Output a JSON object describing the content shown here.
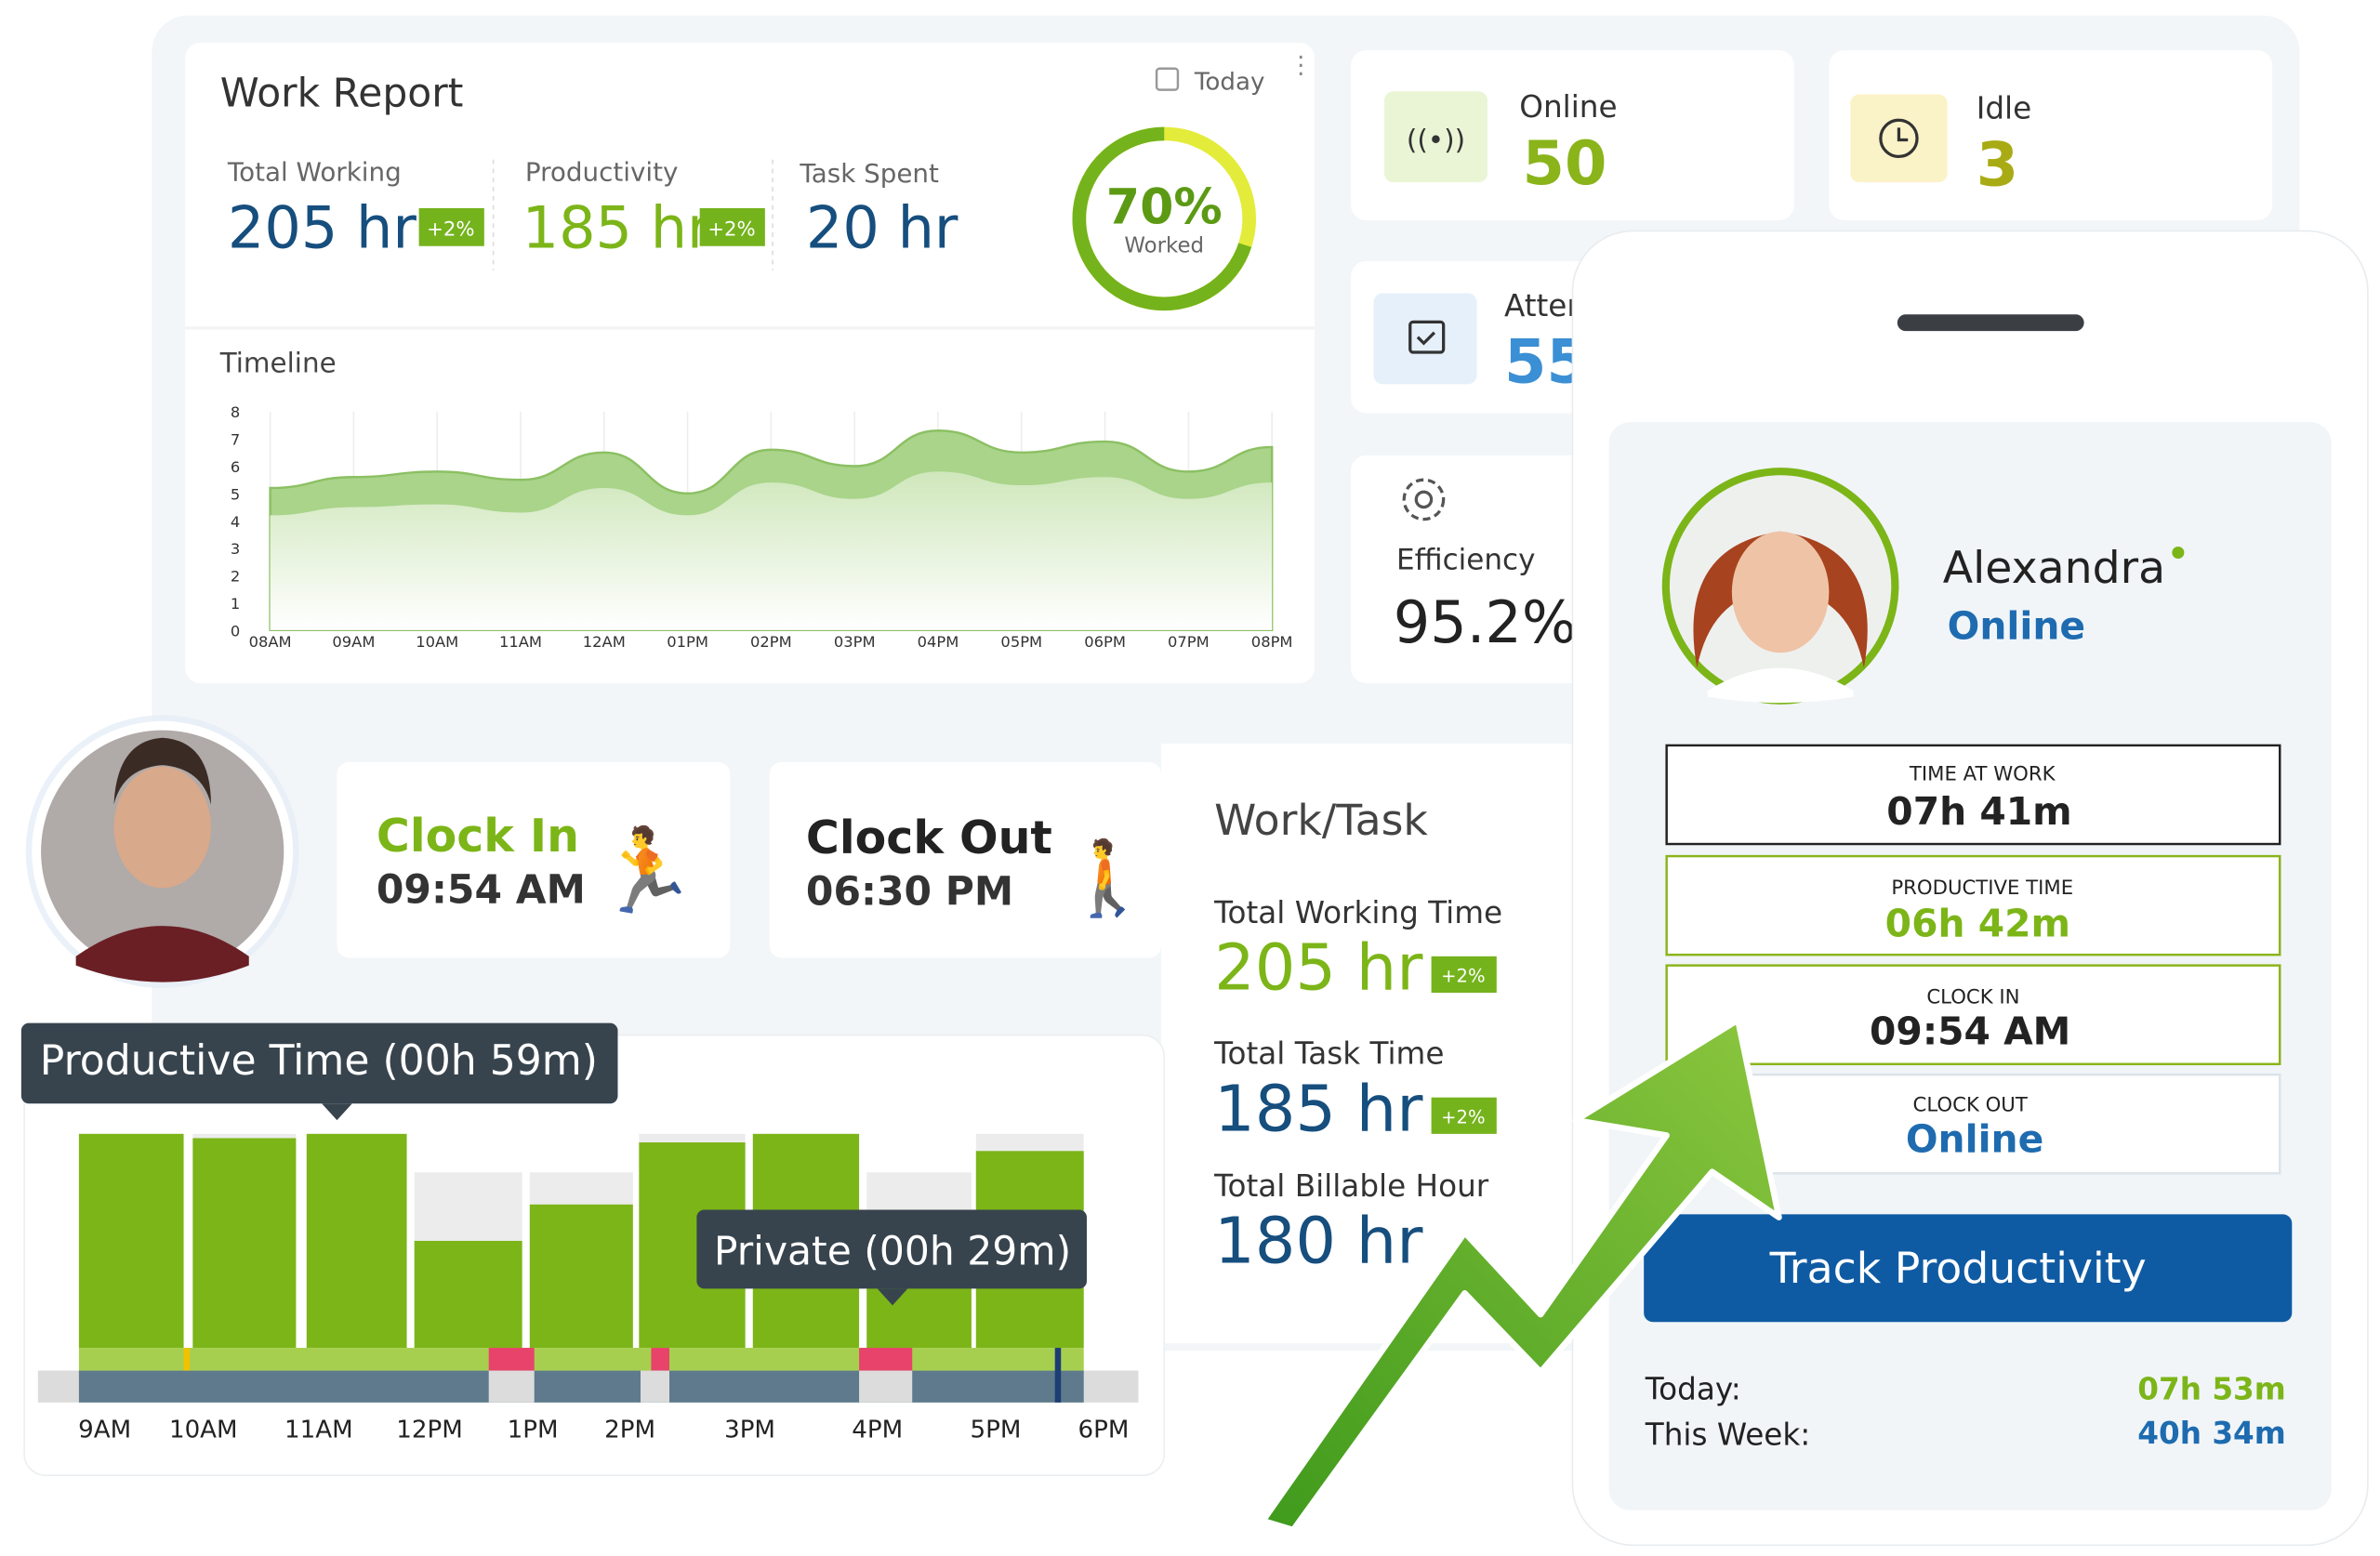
{
  "work_report": {
    "title": "Work Report",
    "filter": "Today",
    "stats": [
      {
        "label": "Total Working",
        "value": "205 hr",
        "badge": "+2%"
      },
      {
        "label": "Productivity",
        "value": "185 hr",
        "badge": "+2%"
      },
      {
        "label": "Task Spent",
        "value": "20 hr"
      }
    ],
    "gauge": {
      "value": 70,
      "label": "70%",
      "caption": "Worked"
    }
  },
  "timeline": {
    "type": "area",
    "title": "Timeline",
    "categories": [
      "08AM",
      "09AM",
      "10AM",
      "11AM",
      "12AM",
      "01PM",
      "02PM",
      "03PM",
      "04PM",
      "05PM",
      "06PM",
      "07PM",
      "08PM"
    ],
    "ylim": [
      0,
      8
    ],
    "yticks": [
      0,
      1,
      2,
      3,
      4,
      5,
      6,
      7,
      8
    ],
    "series": [
      {
        "color": "#a9d48a",
        "values": [
          5.2,
          5.6,
          5.8,
          5.5,
          6.5,
          5.0,
          6.6,
          6.0,
          7.3,
          6.5,
          6.9,
          5.8,
          6.7
        ]
      },
      {
        "color": "#d8ecc8",
        "values": [
          4.2,
          4.5,
          4.6,
          4.3,
          5.2,
          4.2,
          5.4,
          4.8,
          5.8,
          5.3,
          5.6,
          4.8,
          5.4
        ]
      }
    ]
  },
  "stat_cards": [
    {
      "label": "Online",
      "value": "50"
    },
    {
      "label": "Idle",
      "value": "3"
    },
    {
      "label": "Attendance",
      "value": "55"
    },
    {
      "label": "Efficiency",
      "value": "95.2%"
    }
  ],
  "clock": {
    "in": {
      "label": "Clock In",
      "time": "09:54 AM"
    },
    "out": {
      "label": "Clock Out",
      "time": "06:30 PM"
    }
  },
  "work_task": {
    "title": "Work/Task",
    "items": [
      {
        "label": "Total Working Time",
        "value": "205 hr",
        "badge": "+2%"
      },
      {
        "label": "Total Task Time",
        "value": "185 hr",
        "badge": "+2%"
      },
      {
        "label": "Total Billable Hour",
        "value": "180 hr"
      }
    ]
  },
  "activity": {
    "type": "bar",
    "axis_labels": [
      "9AM",
      "10AM",
      "11AM",
      "12PM",
      "1PM",
      "2PM",
      "3PM",
      "4PM",
      "5PM",
      "6PM"
    ],
    "ylim": [
      0,
      100
    ],
    "productive": [
      100,
      98,
      100,
      50,
      67,
      96,
      100,
      60,
      92
    ],
    "total": [
      100,
      100,
      100,
      82,
      82,
      100,
      100,
      82,
      100
    ],
    "tooltips": [
      "Productive Time (00h 59m)",
      "Private (00h 29m)"
    ]
  },
  "profile": {
    "name": "Alexandra",
    "status": "Online",
    "rows": [
      {
        "label": "TIME AT WORK",
        "value": "07h 41m"
      },
      {
        "label": "PRODUCTIVE TIME",
        "value": "06h 42m"
      },
      {
        "label": "CLOCK IN",
        "value": "09:54 AM"
      },
      {
        "label": "CLOCK OUT",
        "value": "Online"
      }
    ],
    "button": "Track Productivity",
    "summary": [
      {
        "label": "Today:",
        "value": "07h 53m"
      },
      {
        "label": "This Week:",
        "value": "40h 34m"
      }
    ]
  }
}
